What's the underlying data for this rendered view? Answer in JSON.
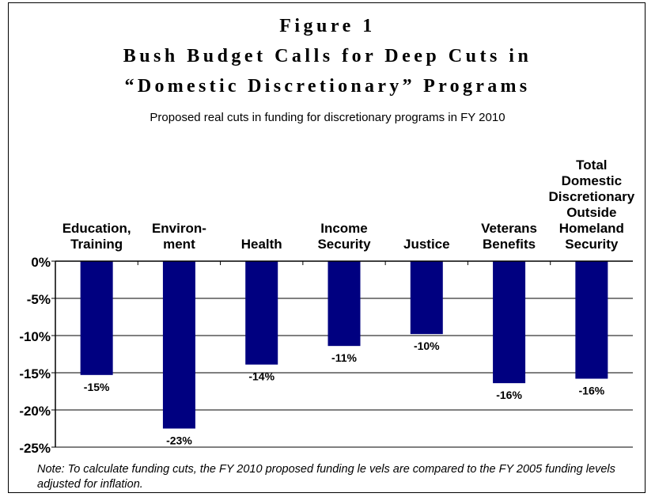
{
  "figure": {
    "title_line1": "Figure 1",
    "title_line2": "Bush Budget Calls for Deep Cuts in",
    "title_line3": "“Domestic Discretionary” Programs",
    "subtitle": "Proposed real cuts in funding for discretionary programs in FY 2010",
    "note": "Note: To calculate funding cuts, the FY 2010 proposed funding le vels are compared to the FY 2005 funding levels adjusted for inflation."
  },
  "chart_data": {
    "type": "bar",
    "title": "Bush Budget Calls for Deep Cuts in “Domestic Discretionary” Programs",
    "subtitle": "Proposed real cuts in funding for discretionary programs in FY 2010",
    "categories": [
      [
        "Education,",
        "Training"
      ],
      [
        "Environ-",
        "ment"
      ],
      [
        "Health"
      ],
      [
        "Income",
        "Security"
      ],
      [
        "Justice"
      ],
      [
        "Veterans",
        "Benefits"
      ],
      [
        "Total",
        "Domestic",
        "Discretionary",
        "Outside",
        "Homeland",
        "Security"
      ]
    ],
    "values": [
      -15.3,
      -22.5,
      -13.9,
      -11.4,
      -9.8,
      -16.4,
      -15.8
    ],
    "data_labels": [
      "-15%",
      "-23%",
      "-14%",
      "-11%",
      "-10%",
      "-16%",
      "-16%"
    ],
    "y_ticks": [
      "0%",
      "-5%",
      "-10%",
      "-15%",
      "-20%",
      "-25%"
    ],
    "y_tick_values": [
      0,
      -5,
      -10,
      -15,
      -20,
      -25
    ],
    "ylim": [
      -25,
      0
    ],
    "grid": true,
    "bar_color": "#000080",
    "category_labels_position": "top",
    "legend": "none"
  }
}
